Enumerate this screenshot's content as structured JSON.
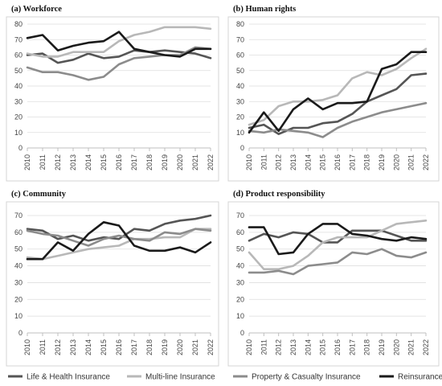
{
  "chart_data": [
    {
      "type": "line",
      "title": "(a)   Workforce",
      "x": [
        2010,
        2011,
        2012,
        2013,
        2014,
        2015,
        2016,
        2017,
        2018,
        2019,
        2020,
        2021,
        2022
      ],
      "ylim": [
        0,
        80
      ],
      "yticks": [
        0,
        10,
        20,
        30,
        40,
        50,
        60,
        70,
        80
      ],
      "series": [
        {
          "name": "Life & Health Insurance",
          "color": "#555555",
          "values": [
            60,
            61,
            55,
            57,
            61,
            58,
            59,
            63,
            62,
            63,
            62,
            61,
            58
          ]
        },
        {
          "name": "Multi-line Insurance",
          "color": "#b8b8b8",
          "values": [
            61,
            59,
            59,
            62,
            62,
            62,
            69,
            73,
            75,
            78,
            78,
            78,
            77
          ]
        },
        {
          "name": "Property & Casualty Insurance",
          "color": "#8c8c8c",
          "values": [
            52,
            49,
            49,
            47,
            44,
            46,
            54,
            58,
            59,
            60,
            60,
            65,
            64
          ]
        },
        {
          "name": "Reinsurance",
          "color": "#1a1a1a",
          "values": [
            71,
            73,
            63,
            66,
            68,
            69,
            75,
            64,
            62,
            60,
            59,
            64,
            64
          ]
        }
      ]
    },
    {
      "type": "line",
      "title": "(b)   Human rights",
      "x": [
        2010,
        2011,
        2012,
        2013,
        2014,
        2015,
        2016,
        2017,
        2018,
        2019,
        2020,
        2021,
        2022
      ],
      "ylim": [
        0,
        80
      ],
      "yticks": [
        0,
        10,
        20,
        30,
        40,
        50,
        60,
        70,
        80
      ],
      "series": [
        {
          "name": "Life & Health Insurance",
          "color": "#555555",
          "values": [
            13,
            15,
            9,
            13,
            13,
            16,
            17,
            22,
            30,
            34,
            38,
            47,
            48
          ]
        },
        {
          "name": "Multi-line Insurance",
          "color": "#b8b8b8",
          "values": [
            15,
            18,
            27,
            30,
            30,
            31,
            34,
            45,
            49,
            47,
            51,
            58,
            64
          ]
        },
        {
          "name": "Property & Casualty Insurance",
          "color": "#8c8c8c",
          "values": [
            11,
            10,
            12,
            11,
            10,
            7,
            13,
            17,
            20,
            23,
            25,
            27,
            29
          ]
        },
        {
          "name": "Reinsurance",
          "color": "#1a1a1a",
          "values": [
            10,
            23,
            11,
            25,
            32,
            25,
            29,
            29,
            30,
            51,
            54,
            62,
            62
          ]
        }
      ]
    },
    {
      "type": "line",
      "title": "(c)   Community",
      "x": [
        2010,
        2011,
        2012,
        2013,
        2014,
        2015,
        2016,
        2017,
        2018,
        2019,
        2020,
        2021,
        2022
      ],
      "ylim": [
        0,
        70
      ],
      "yticks": [
        0,
        10,
        20,
        30,
        40,
        50,
        60,
        70
      ],
      "series": [
        {
          "name": "Life & Health Insurance",
          "color": "#555555",
          "values": [
            62,
            61,
            56,
            58,
            55,
            57,
            56,
            62,
            61,
            65,
            67,
            68,
            70
          ]
        },
        {
          "name": "Multi-line Insurance",
          "color": "#b8b8b8",
          "values": [
            45,
            44,
            46,
            48,
            50,
            51,
            52,
            56,
            56,
            57,
            57,
            62,
            62
          ]
        },
        {
          "name": "Property & Casualty Insurance",
          "color": "#8c8c8c",
          "values": [
            61,
            59,
            58,
            55,
            52,
            56,
            58,
            56,
            55,
            60,
            59,
            62,
            61
          ]
        },
        {
          "name": "Reinsurance",
          "color": "#1a1a1a",
          "values": [
            44,
            44,
            54,
            49,
            59,
            66,
            64,
            52,
            49,
            49,
            51,
            48,
            54
          ]
        }
      ]
    },
    {
      "type": "line",
      "title": "(d)   Product responsibility",
      "x": [
        2010,
        2011,
        2012,
        2013,
        2014,
        2015,
        2016,
        2017,
        2018,
        2019,
        2020,
        2021,
        2022
      ],
      "ylim": [
        0,
        70
      ],
      "yticks": [
        0,
        10,
        20,
        30,
        40,
        50,
        60,
        70
      ],
      "series": [
        {
          "name": "Life & Health Insurance",
          "color": "#555555",
          "values": [
            55,
            59,
            57,
            60,
            59,
            54,
            54,
            61,
            61,
            61,
            58,
            55,
            55
          ]
        },
        {
          "name": "Multi-line Insurance",
          "color": "#b8b8b8",
          "values": [
            48,
            38,
            38,
            40,
            46,
            54,
            57,
            57,
            57,
            61,
            65,
            66,
            67
          ]
        },
        {
          "name": "Property & Casualty Insurance",
          "color": "#8c8c8c",
          "values": [
            36,
            36,
            37,
            35,
            40,
            41,
            42,
            48,
            47,
            50,
            46,
            45,
            48
          ]
        },
        {
          "name": "Reinsurance",
          "color": "#1a1a1a",
          "values": [
            63,
            63,
            47,
            48,
            59,
            65,
            65,
            59,
            58,
            56,
            55,
            57,
            56
          ]
        }
      ]
    }
  ],
  "legend": [
    {
      "label": "Life & Health Insurance",
      "color": "#555555"
    },
    {
      "label": "Multi-line Insurance",
      "color": "#b8b8b8"
    },
    {
      "label": "Property & Casualty Insurance",
      "color": "#8c8c8c"
    },
    {
      "label": "Reinsurance",
      "color": "#1a1a1a"
    }
  ]
}
